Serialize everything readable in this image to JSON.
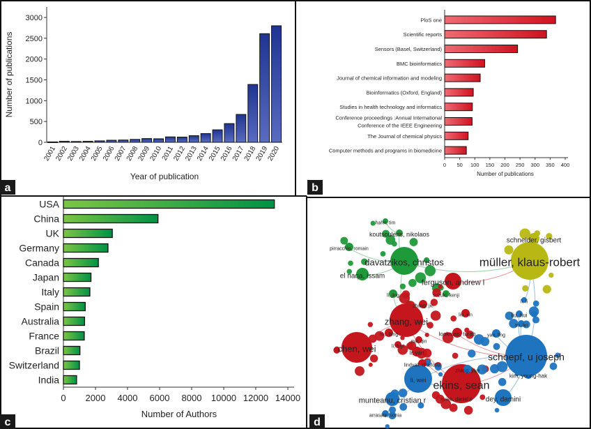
{
  "panel_labels": [
    "a",
    "b",
    "c",
    "d"
  ],
  "colors": {
    "panel_a_bar": "#2e44a0",
    "panel_b_bar": "#e0202e",
    "panel_c_bar": "#0a9a48",
    "cluster_green": "#1f9a3a",
    "cluster_red": "#c4161c",
    "cluster_blue": "#1f74c0",
    "cluster_yellow": "#b8b814"
  },
  "chart_data": [
    {
      "panel": "a",
      "type": "bar",
      "orientation": "vertical",
      "categories": [
        "2001",
        "2002",
        "2003",
        "2004",
        "2005",
        "2006",
        "2007",
        "2008",
        "2009",
        "2010",
        "2011",
        "2012",
        "2013",
        "2014",
        "2015",
        "2016",
        "2017",
        "2018",
        "2019",
        "2020"
      ],
      "values": [
        10,
        25,
        20,
        25,
        35,
        50,
        55,
        70,
        90,
        85,
        130,
        125,
        160,
        210,
        300,
        450,
        670,
        1390,
        2610,
        2800
      ],
      "xlabel": "Year of publication",
      "ylabel": "Number of publications",
      "yticks": [
        0,
        500,
        1000,
        1500,
        2000,
        2500,
        3000
      ],
      "ylim": [
        0,
        3250
      ],
      "grid": false
    },
    {
      "panel": "b",
      "type": "bar",
      "orientation": "horizontal",
      "categories": [
        "PloS one",
        "Scientific reports",
        "Sensors (Basel, Switzerland)",
        "BMC bioinformatics",
        "Journal of chemical information and modeling",
        "Bioinformatics (Oxford, England)",
        "Studies in health technology and informatics",
        "Conference proceedings :Annual International|Conference of the IEEE Engineering",
        "The Journal of chemical physics",
        "Computer methods and programs in biomedicine"
      ],
      "values": [
        368,
        338,
        242,
        133,
        118,
        95,
        92,
        91,
        78,
        72
      ],
      "xlabel": "Number of publications",
      "xticks": [
        0,
        50,
        100,
        150,
        200,
        250,
        300,
        350,
        400
      ],
      "xlim": [
        0,
        400
      ],
      "grid": false
    },
    {
      "panel": "c",
      "type": "bar",
      "orientation": "horizontal",
      "categories": [
        "USA",
        "China",
        "UK",
        "Germany",
        "Canada",
        "Japan",
        "Italy",
        "Spain",
        "Australia",
        "France",
        "Brazil",
        "Switzerland",
        "India"
      ],
      "values": [
        13160,
        5900,
        3050,
        2780,
        2180,
        1720,
        1650,
        1360,
        1320,
        1300,
        1030,
        1000,
        820
      ],
      "xlabel": "Number of Authors",
      "xticks": [
        0,
        2000,
        4000,
        6000,
        8000,
        10000,
        12000,
        14000
      ],
      "xlim": [
        0,
        14000
      ],
      "grid": false
    },
    {
      "panel": "d",
      "type": "network",
      "clusters": [
        "green",
        "red",
        "blue",
        "yellow"
      ],
      "nodes": [
        {
          "label": "hahn, tim",
          "cluster": "green"
        },
        {
          "label": "koutsouleris, nikolaos",
          "cluster": "green"
        },
        {
          "label": "pirracchio, romain",
          "cluster": "green"
        },
        {
          "label": "davatzikos, christos",
          "cluster": "green"
        },
        {
          "label": "el naqa, issam",
          "cluster": "green"
        },
        {
          "label": "li, jing",
          "cluster": "green"
        },
        {
          "label": "suzuki, kenji",
          "cluster": "green"
        },
        {
          "label": "ferguson, andrew l",
          "cluster": "red"
        },
        {
          "label": "zhang, jie",
          "cluster": "red"
        },
        {
          "label": "liu, xin",
          "cluster": "red"
        },
        {
          "label": "zhang, wei",
          "cluster": "red"
        },
        {
          "label": "lookman, turab",
          "cluster": "red"
        },
        {
          "label": "niu, bing",
          "cluster": "red"
        },
        {
          "label": "ma, qin",
          "cluster": "red"
        },
        {
          "label": "li, fuyi",
          "cluster": "red"
        },
        {
          "label": "chen, wei",
          "cluster": "red"
        },
        {
          "label": "li, yan",
          "cluster": "red"
        },
        {
          "label": "lindvall, charlotta",
          "cluster": "red"
        },
        {
          "label": "ekins, sean",
          "cluster": "red"
        },
        {
          "label": "russo, daniel p",
          "cluster": "red"
        },
        {
          "label": "yan, ling",
          "cluster": "blue"
        },
        {
          "label": "zhang, yiye",
          "cluster": "blue"
        },
        {
          "label": "schoepf, u joseph",
          "cluster": "blue"
        },
        {
          "label": "kim, young-hak",
          "cluster": "blue"
        },
        {
          "label": "li, wei",
          "cluster": "blue"
        },
        {
          "label": "munteanu, cristian r",
          "cluster": "blue"
        },
        {
          "label": "dey, damini",
          "cluster": "blue"
        },
        {
          "label": "arrasate, sonia",
          "cluster": "blue"
        },
        {
          "label": "li, li",
          "cluster": "blue"
        },
        {
          "label": "liu, hui",
          "cluster": "blue"
        },
        {
          "label": "xu, lei",
          "cluster": "blue"
        },
        {
          "label": "müller, klaus-robert",
          "cluster": "yellow"
        },
        {
          "label": "schneider, gisbert",
          "cluster": "yellow"
        }
      ]
    }
  ]
}
